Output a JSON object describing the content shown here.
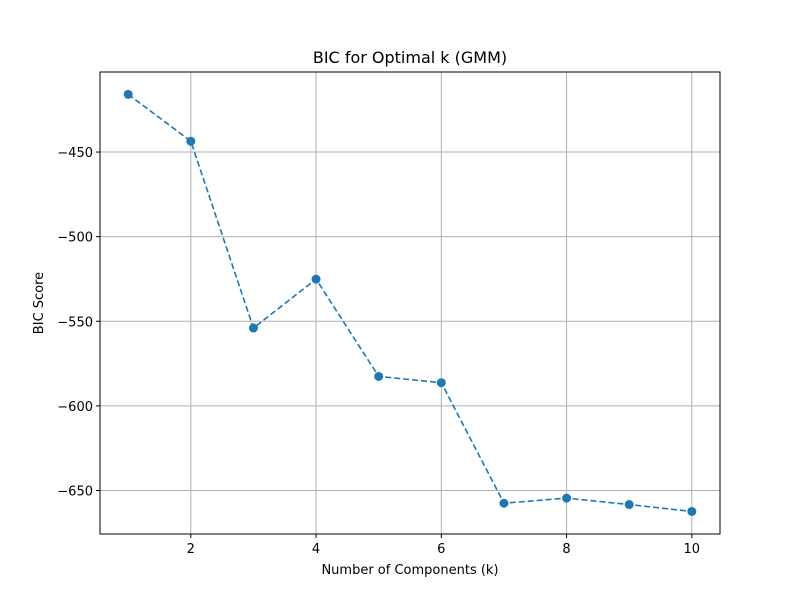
{
  "chart_data": {
    "type": "line",
    "title": "BIC for Optimal k (GMM)",
    "xlabel": "Number of Components (k)",
    "ylabel": "BIC Score",
    "x": [
      1,
      2,
      3,
      4,
      5,
      6,
      7,
      8,
      9,
      10
    ],
    "series": [
      {
        "values": [
          -415.9,
          -443.6,
          -554.0,
          -525.1,
          -582.6,
          -586.3,
          -657.5,
          -654.5,
          -658.3,
          -662.4
        ]
      }
    ],
    "xlim": [
      0.55,
      10.45
    ],
    "ylim": [
      -675.7,
      -402.7
    ],
    "xticks": [
      2,
      4,
      6,
      8,
      10
    ],
    "yticks": [
      -450,
      -500,
      -550,
      -600,
      -650
    ],
    "xtick_labels": [
      "2",
      "4",
      "6",
      "8",
      "10"
    ],
    "ytick_labels": [
      "−450",
      "−500",
      "−550",
      "−600",
      "−650"
    ],
    "grid": true,
    "line_style": "dashed",
    "marker": "circle",
    "colors": {
      "line": "#1f77b4",
      "grid": "#b0b0b0",
      "axes": "#000000"
    }
  }
}
